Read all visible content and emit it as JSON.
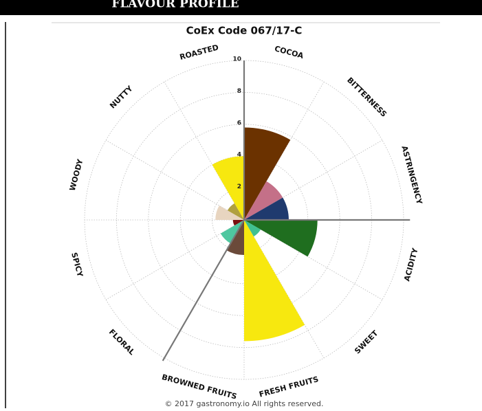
{
  "header": {
    "title": "FLAVOUR PROFILE"
  },
  "chart_data": {
    "type": "polar_bar",
    "title": "CoEx Code 067/17-C",
    "categories": [
      "COCOA",
      "BITTERNESS",
      "ASTRINGENCY",
      "ACIDITY",
      "SWEET",
      "FRESH FRUITS",
      "BROWNED FRUITS",
      "FLORAL",
      "SPICY",
      "WOODY",
      "NUTTY",
      "ROASTED"
    ],
    "values": [
      5.8,
      2.8,
      2.8,
      4.6,
      1.2,
      7.6,
      2.2,
      1.7,
      0.7,
      1.8,
      1.2,
      4.0
    ],
    "colors": [
      "#6b3200",
      "#c47088",
      "#1f3a6e",
      "#1f6e1f",
      "#40c090",
      "#f7e80f",
      "#6b4a3a",
      "#4fc7a0",
      "#7a1010",
      "#e8d5c0",
      "#b0a040",
      "#f7e80f"
    ],
    "rlim": [
      0,
      10
    ],
    "rticks": [
      2,
      4,
      6,
      8,
      10
    ],
    "grid": true
  },
  "footer": "© 2017 gastronomy.io All rights reserved."
}
